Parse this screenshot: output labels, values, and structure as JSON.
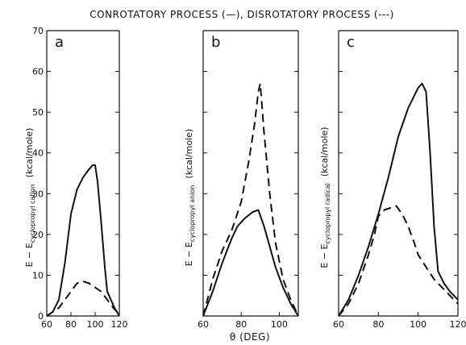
{
  "figure_title": "CONROTATORY PROCESS (—), DISROTATORY PROCESS (---)",
  "x_axis_title": "θ (DEG)",
  "chart_data": [
    {
      "type": "line",
      "panel": "a",
      "ylabel_main": "E − E",
      "ylabel_sub": "cyclopropyl cation",
      "ylabel_unit": "(kcal/mole)",
      "xlim": [
        60,
        120
      ],
      "ylim": [
        0,
        70
      ],
      "x_ticks": [
        60,
        80,
        100,
        120
      ],
      "y_ticks": [
        0,
        10,
        20,
        30,
        40,
        50,
        60,
        70
      ],
      "series": [
        {
          "style": "solid",
          "x": [
            60,
            65,
            70,
            75,
            80,
            85,
            90,
            95,
            98,
            100,
            102,
            105,
            108,
            110,
            113,
            116,
            120
          ],
          "y": [
            0,
            1,
            4,
            13,
            25,
            31,
            34,
            36,
            37,
            37,
            33,
            23,
            12,
            6,
            4,
            2,
            0
          ]
        },
        {
          "style": "dashed",
          "x": [
            60,
            65,
            70,
            75,
            80,
            85,
            90,
            95,
            100,
            105,
            110,
            115,
            120
          ],
          "y": [
            0,
            1,
            2,
            4,
            6,
            8,
            8.5,
            8,
            7,
            6,
            4,
            2,
            0.5
          ]
        }
      ]
    },
    {
      "type": "line",
      "panel": "b",
      "ylabel_main": "E − E",
      "ylabel_sub": "cyclopropyl anion",
      "ylabel_unit": "(kcal/mole)",
      "xlim": [
        60,
        110
      ],
      "ylim": [
        0,
        70
      ],
      "x_ticks": [
        60,
        80,
        100
      ],
      "y_ticks": [
        0,
        10,
        20,
        30,
        40,
        50,
        60,
        70
      ],
      "series": [
        {
          "style": "solid",
          "x": [
            60,
            65,
            70,
            75,
            78,
            82,
            86,
            89,
            92,
            95,
            98,
            102,
            106,
            110
          ],
          "y": [
            0,
            6,
            13,
            19,
            22,
            24,
            25.5,
            26,
            22,
            17,
            12,
            7,
            3,
            0
          ]
        },
        {
          "style": "dashed",
          "x": [
            60,
            65,
            70,
            75,
            80,
            84,
            87,
            89,
            90,
            92,
            95,
            98,
            102,
            106,
            110
          ],
          "y": [
            0,
            9,
            16,
            21,
            28,
            38,
            47,
            55,
            57,
            45,
            30,
            18,
            9,
            4,
            0
          ]
        }
      ]
    },
    {
      "type": "line",
      "panel": "c",
      "ylabel_main": "E − E",
      "ylabel_sub": "cyclopropyl radical",
      "ylabel_unit": "(kcal/mole)",
      "xlim": [
        60,
        120
      ],
      "ylim": [
        0,
        70
      ],
      "x_ticks": [
        60,
        80,
        100,
        120
      ],
      "y_ticks": [
        0,
        10,
        20,
        30,
        40,
        50,
        60,
        70
      ],
      "series": [
        {
          "style": "solid",
          "x": [
            60,
            65,
            70,
            75,
            80,
            85,
            90,
            95,
            100,
            102,
            104,
            106,
            108,
            110,
            113,
            116,
            120
          ],
          "y": [
            0,
            4,
            10,
            17,
            25,
            34,
            44,
            51,
            56,
            57,
            55,
            40,
            22,
            11,
            8,
            6,
            4
          ]
        },
        {
          "style": "dashed",
          "x": [
            60,
            65,
            70,
            75,
            78,
            80,
            83,
            86,
            89,
            92,
            95,
            98,
            100,
            104,
            108,
            112,
            116,
            120
          ],
          "y": [
            0,
            3,
            8,
            15,
            20,
            24.5,
            26,
            26.5,
            27,
            25,
            22,
            18,
            15,
            12,
            9,
            7,
            5,
            3
          ]
        }
      ]
    }
  ]
}
